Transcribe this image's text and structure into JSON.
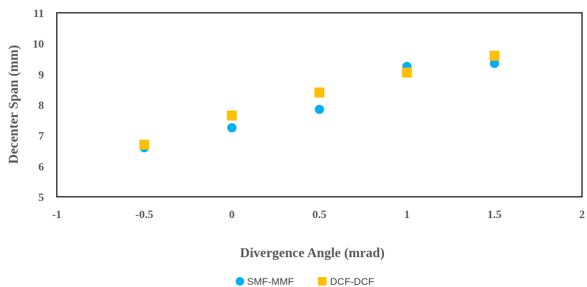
{
  "chart_data": {
    "type": "scatter",
    "title": "",
    "xlabel": "Divergence Angle (mrad)",
    "ylabel": "Decenter Span (mm)",
    "xlim": [
      -1,
      2
    ],
    "ylim": [
      5,
      11
    ],
    "xticks": [
      -1,
      -0.5,
      0,
      0.5,
      1,
      1.5,
      2
    ],
    "yticks": [
      5,
      6,
      7,
      8,
      9,
      10,
      11
    ],
    "xtick_labels": [
      "-1",
      "-0.5",
      "0",
      "0.5",
      "1",
      "1.5",
      "2"
    ],
    "ytick_labels": [
      "5",
      "6",
      "7",
      "8",
      "9",
      "10",
      "11"
    ],
    "grid": false,
    "legend_position": "bottom",
    "series": [
      {
        "name": "SMF-MMF",
        "marker": "circle",
        "color": "#00B0F0",
        "x": [
          -0.5,
          0,
          0.5,
          1,
          1.5
        ],
        "y": [
          6.6,
          7.25,
          7.85,
          9.25,
          9.35
        ]
      },
      {
        "name": "DCF-DCF",
        "marker": "square",
        "color": "#FFC000",
        "x": [
          -0.5,
          0,
          0.5,
          1,
          1.5
        ],
        "y": [
          6.7,
          7.65,
          8.4,
          9.05,
          9.6
        ]
      }
    ]
  }
}
